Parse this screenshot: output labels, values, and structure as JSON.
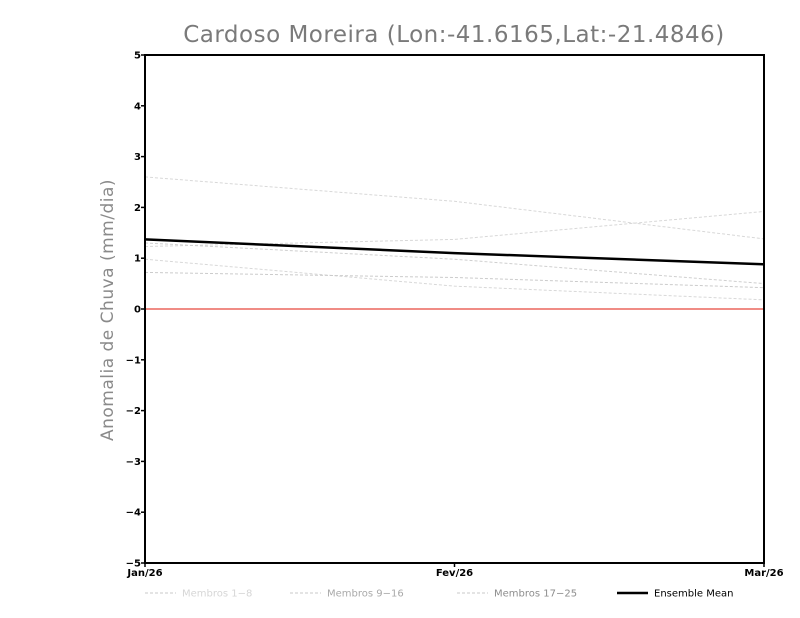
{
  "chart_data": {
    "type": "line",
    "title": "Cardoso Moreira (Lon:-41.6165,Lat:-21.4846)",
    "xlabel": "",
    "ylabel": "Anomalia de Chuva (mm/dia)",
    "categories": [
      "Jan/26",
      "Fev/26",
      "Mar/26"
    ],
    "ylim": [
      -5,
      5
    ],
    "yticks": [
      -5,
      -4,
      -3,
      -2,
      -1,
      0,
      1,
      2,
      3,
      4,
      5
    ],
    "grid": false,
    "legend_position": "bottom",
    "reference_line": {
      "y": 0,
      "color": "#e8473c"
    },
    "series": [
      {
        "name": "Membros 1-8",
        "color": "#d8d8d8",
        "dashed": true,
        "width": 1,
        "lines": [
          [
            2.6,
            2.12,
            1.38
          ],
          [
            1.23,
            1.37,
            1.92
          ],
          [
            0.98,
            0.45,
            0.18
          ]
        ]
      },
      {
        "name": "Membros 9-16",
        "color": "#cfcfcf",
        "dashed": true,
        "width": 1,
        "lines": [
          [
            1.3,
            0.98,
            0.5
          ]
        ]
      },
      {
        "name": "Membros 17-25",
        "color": "#cbcbcb",
        "dashed": true,
        "width": 1,
        "lines": [
          [
            0.72,
            0.62,
            0.42
          ]
        ]
      },
      {
        "name": "Ensemble Mean",
        "color": "#000000",
        "dashed": false,
        "width": 2.5,
        "lines": [
          [
            1.37,
            1.1,
            0.88
          ]
        ]
      }
    ]
  }
}
